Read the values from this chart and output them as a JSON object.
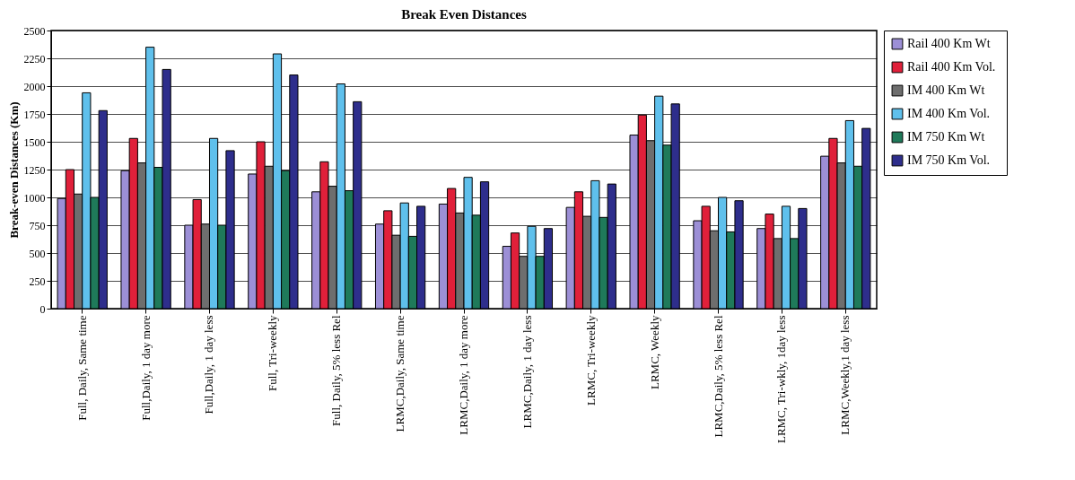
{
  "chart_data": {
    "type": "bar",
    "title": "Break Even Distances",
    "ylabel": "Break-even Distances (Km)",
    "categories": [
      "Full, Daily, Same time",
      "Full,Daily, 1 day more",
      "Full,Daily, 1 day less",
      "Full, Tri-weekly",
      "Full, Daily, 5% less Rel",
      "LRMC,Daily, Same time",
      "LRMC,Daily, 1 day more",
      "LRMC,Daily, 1 day less",
      "LRMC, Tri-weekly",
      "LRMC, Weekly",
      "LRMC,Daily, 5% less Rel",
      "LRMC, Tri-wkly, 1day less",
      "LRMC,Weekly,1 day less"
    ],
    "series": [
      {
        "name": "Rail  400 Km Wt",
        "color": "#9c8fd6",
        "values": [
          990,
          1240,
          750,
          1210,
          1050,
          760,
          940,
          560,
          910,
          1560,
          790,
          720,
          1370
        ]
      },
      {
        "name": "Rail  400 Km Vol.",
        "color": "#e0203a",
        "values": [
          1250,
          1530,
          980,
          1500,
          1320,
          880,
          1080,
          680,
          1050,
          1740,
          920,
          850,
          1530
        ]
      },
      {
        "name": "IM  400 Km Wt",
        "color": "#6e6e6e",
        "values": [
          1030,
          1310,
          760,
          1280,
          1100,
          660,
          860,
          470,
          830,
          1510,
          700,
          630,
          1310
        ]
      },
      {
        "name": "IM  400 Km Vol.",
        "color": "#5fc0ec",
        "values": [
          1940,
          2350,
          1530,
          2290,
          2020,
          950,
          1180,
          740,
          1150,
          1910,
          1000,
          920,
          1690
        ]
      },
      {
        "name": "IM  750 Km Wt",
        "color": "#1f7a5a",
        "values": [
          1000,
          1270,
          750,
          1240,
          1060,
          650,
          840,
          470,
          820,
          1470,
          690,
          630,
          1280
        ]
      },
      {
        "name": "IM  750 Km Vol.",
        "color": "#2e2e8c",
        "values": [
          1780,
          2150,
          1420,
          2100,
          1860,
          920,
          1140,
          720,
          1120,
          1840,
          970,
          900,
          1620
        ]
      }
    ],
    "ylim": [
      0,
      2500
    ],
    "yticks": [
      0,
      250,
      500,
      750,
      1000,
      1250,
      1500,
      1750,
      2000,
      2250,
      2500
    ],
    "grid": "y",
    "legend": "right"
  }
}
